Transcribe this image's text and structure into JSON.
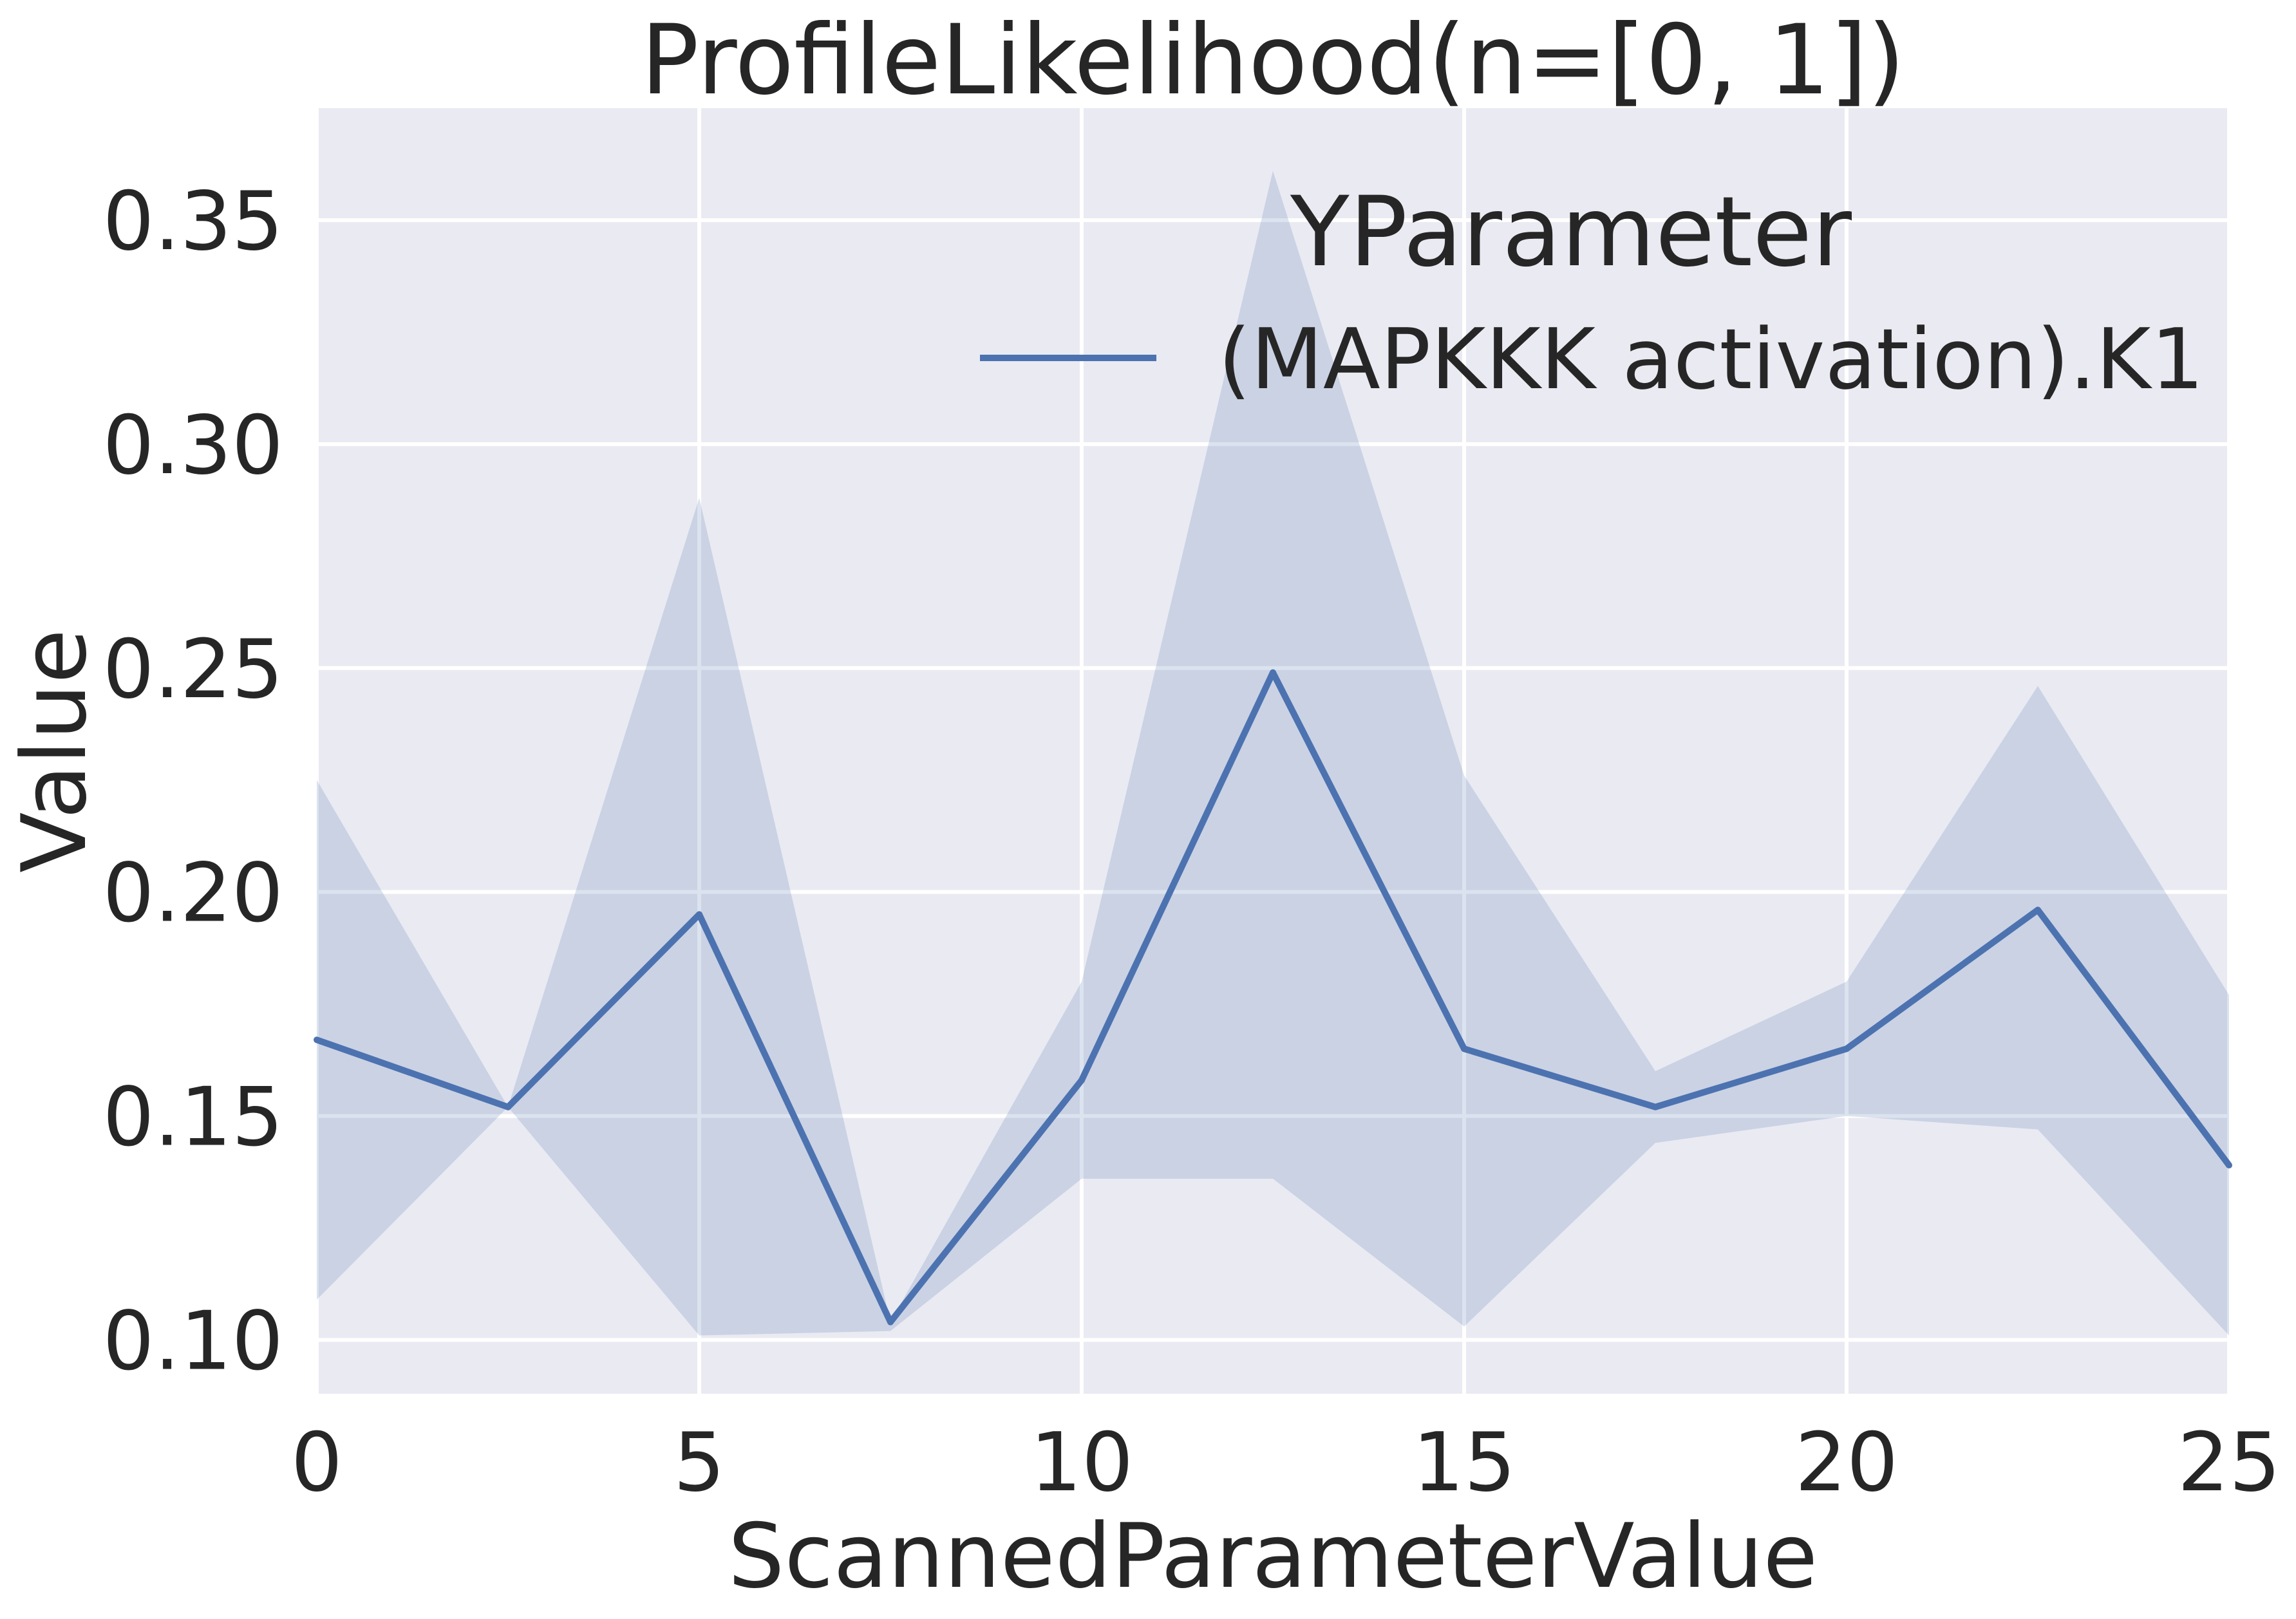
{
  "chart_data": {
    "type": "line",
    "title": "ProfileLikelihood(n=[0, 1])",
    "xlabel": "ScannedParameterValue",
    "ylabel": "Value",
    "xlim": [
      0,
      25
    ],
    "ylim": [
      0.088,
      0.375
    ],
    "xticks": [
      0,
      5,
      10,
      15,
      20,
      25
    ],
    "xtick_labels": [
      "0",
      "5",
      "10",
      "15",
      "20",
      "25"
    ],
    "yticks": [
      0.1,
      0.15,
      0.2,
      0.25,
      0.3,
      0.35
    ],
    "ytick_labels": [
      "0.10",
      "0.15",
      "0.20",
      "0.25",
      "0.30",
      "0.35"
    ],
    "grid": true,
    "legend": {
      "title": "YParameter",
      "placement": "upper-right"
    },
    "x": [
      0,
      2.5,
      5,
      7.5,
      10,
      12.5,
      15,
      17.5,
      20,
      22.5,
      25
    ],
    "series": [
      {
        "name": "(MAPKKK activation).K1",
        "color": "#4c72b0",
        "band_color": "#4c72b0",
        "values": [
          0.167,
          0.152,
          0.195,
          0.104,
          0.158,
          0.249,
          0.165,
          0.152,
          0.165,
          0.196,
          0.139
        ],
        "upper": [
          0.225,
          0.152,
          0.288,
          0.104,
          0.18,
          0.361,
          0.226,
          0.16,
          0.18,
          0.246,
          0.177
        ],
        "lower": [
          0.109,
          0.152,
          0.101,
          0.102,
          0.136,
          0.136,
          0.103,
          0.144,
          0.15,
          0.147,
          0.101
        ]
      }
    ],
    "colors": {
      "plot_background": "#eaeaf2",
      "gridline": "#ffffff",
      "text": "#262626"
    }
  }
}
